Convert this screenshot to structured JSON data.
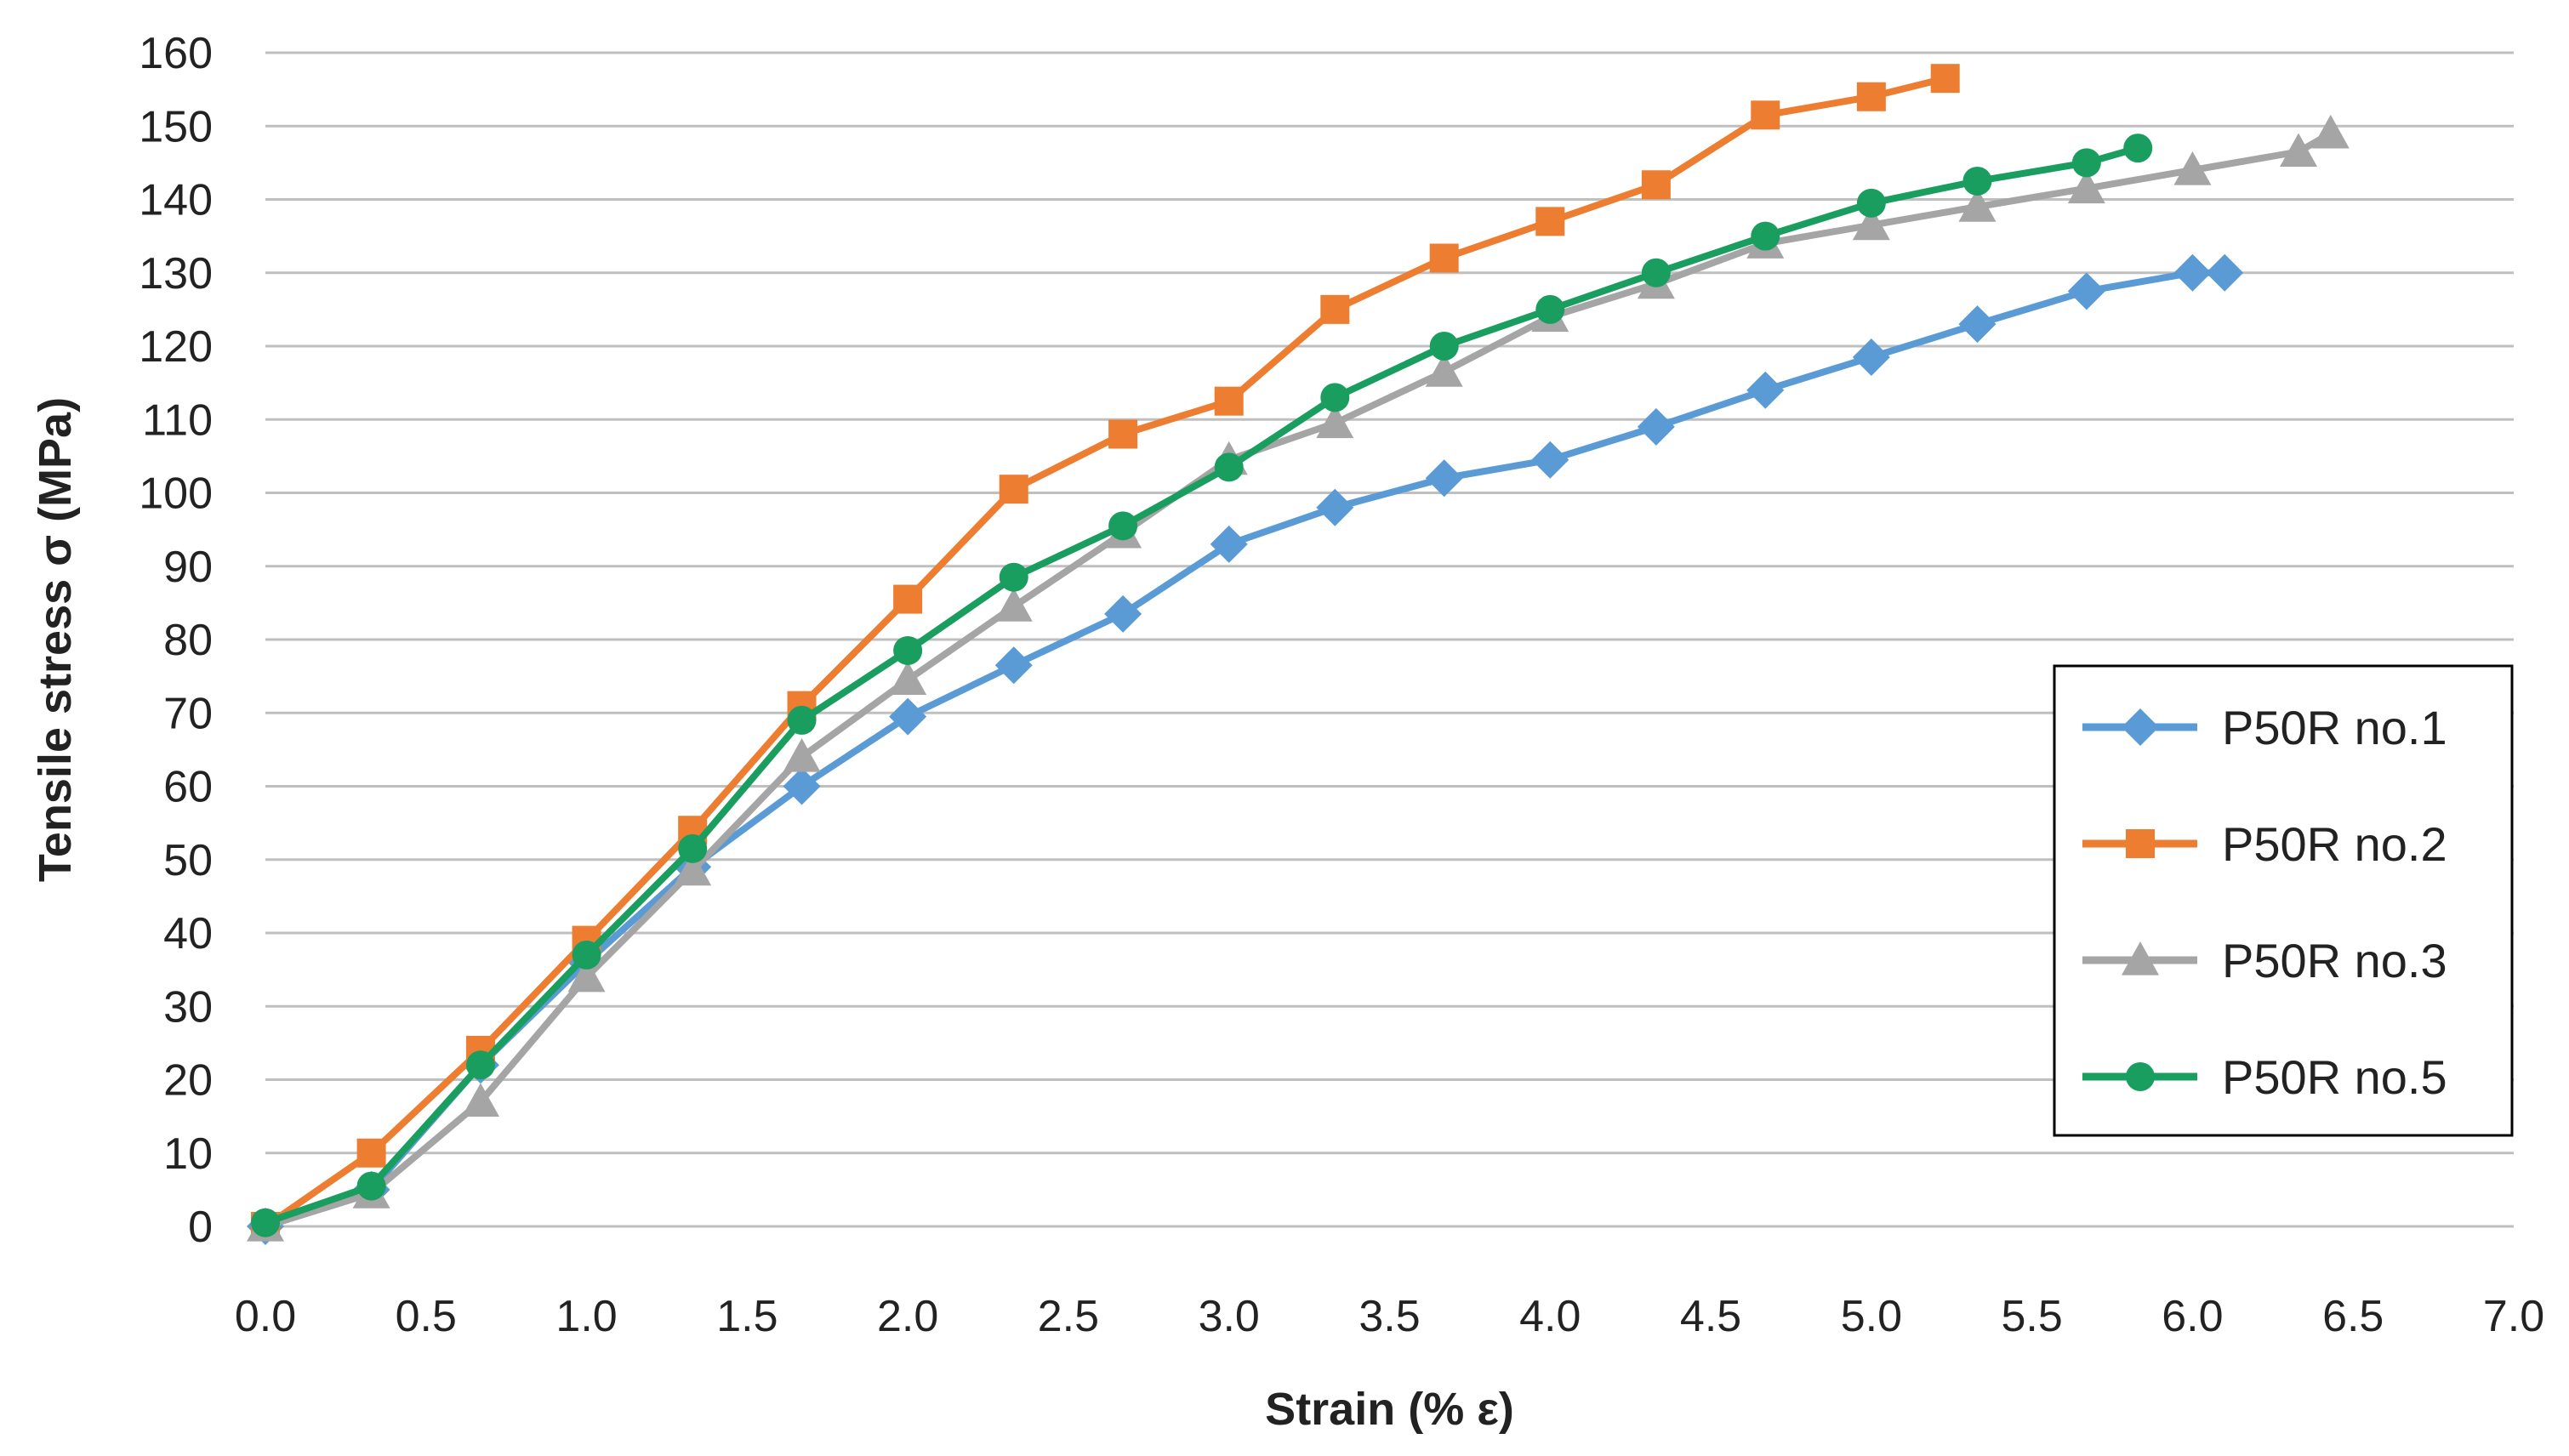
{
  "chart_data": {
    "type": "line",
    "title": "",
    "xlabel": "Strain (% ε)",
    "ylabel": "Tensile stress σ (MPa)",
    "xlim": [
      0,
      7
    ],
    "ylim": [
      0,
      160
    ],
    "x_ticks": [
      "0.0",
      "0.5",
      "1.0",
      "1.5",
      "2.0",
      "2.5",
      "3.0",
      "3.5",
      "4.0",
      "4.5",
      "5.0",
      "5.5",
      "6.0",
      "6.5",
      "7.0"
    ],
    "y_ticks": [
      "0",
      "10",
      "20",
      "30",
      "40",
      "50",
      "60",
      "70",
      "80",
      "90",
      "100",
      "110",
      "120",
      "130",
      "140",
      "150",
      "160"
    ],
    "grid": "horizontal",
    "legend_position": "right",
    "series": [
      {
        "name": "P50R no.1",
        "color": "#5B9BD5",
        "marker": "diamond",
        "points": [
          [
            0.0,
            0
          ],
          [
            0.33,
            5
          ],
          [
            0.67,
            22
          ],
          [
            1.0,
            36
          ],
          [
            1.33,
            49
          ],
          [
            1.67,
            60
          ],
          [
            2.0,
            69.5
          ],
          [
            2.33,
            76.5
          ],
          [
            2.67,
            83.5
          ],
          [
            3.0,
            93
          ],
          [
            3.33,
            98
          ],
          [
            3.67,
            102
          ],
          [
            4.0,
            104.5
          ],
          [
            4.33,
            109
          ],
          [
            4.67,
            114
          ],
          [
            5.0,
            118.5
          ],
          [
            5.33,
            123
          ],
          [
            5.67,
            127.5
          ],
          [
            6.0,
            130
          ],
          [
            6.1,
            130
          ]
        ]
      },
      {
        "name": "P50R no.2",
        "color": "#ED7D31",
        "marker": "square",
        "points": [
          [
            0.0,
            0
          ],
          [
            0.33,
            10
          ],
          [
            0.67,
            24
          ],
          [
            1.0,
            39
          ],
          [
            1.33,
            54
          ],
          [
            1.67,
            71
          ],
          [
            2.0,
            85.5
          ],
          [
            2.33,
            100.5
          ],
          [
            2.67,
            108
          ],
          [
            3.0,
            112.5
          ],
          [
            3.33,
            125
          ],
          [
            3.67,
            132
          ],
          [
            4.0,
            137
          ],
          [
            4.33,
            142
          ],
          [
            4.67,
            151.5
          ],
          [
            5.0,
            154
          ],
          [
            5.23,
            156.5
          ]
        ]
      },
      {
        "name": "P50R no.3",
        "color": "#A5A5A5",
        "marker": "triangle",
        "points": [
          [
            0.0,
            0
          ],
          [
            0.33,
            4.5
          ],
          [
            0.67,
            17
          ],
          [
            1.0,
            34
          ],
          [
            1.33,
            48.5
          ],
          [
            1.67,
            64
          ],
          [
            2.0,
            74.5
          ],
          [
            2.33,
            84.5
          ],
          [
            2.67,
            94.5
          ],
          [
            3.0,
            104.5
          ],
          [
            3.33,
            109.5
          ],
          [
            3.67,
            116.5
          ],
          [
            4.0,
            124
          ],
          [
            4.33,
            128.5
          ],
          [
            4.67,
            134
          ],
          [
            5.0,
            136.5
          ],
          [
            5.33,
            139
          ],
          [
            5.67,
            141.5
          ],
          [
            6.0,
            144
          ],
          [
            6.33,
            146.5
          ],
          [
            6.43,
            149
          ]
        ]
      },
      {
        "name": "P50R no.5",
        "color": "#1A9E5F",
        "marker": "circle",
        "points": [
          [
            0.0,
            0.5
          ],
          [
            0.33,
            5.5
          ],
          [
            0.67,
            22
          ],
          [
            1.0,
            37
          ],
          [
            1.33,
            51.5
          ],
          [
            1.67,
            69
          ],
          [
            2.0,
            78.5
          ],
          [
            2.33,
            88.5
          ],
          [
            2.67,
            95.5
          ],
          [
            3.0,
            103.5
          ],
          [
            3.33,
            113
          ],
          [
            3.67,
            120
          ],
          [
            4.0,
            125
          ],
          [
            4.33,
            130
          ],
          [
            4.67,
            135
          ],
          [
            5.0,
            139.5
          ],
          [
            5.33,
            142.5
          ],
          [
            5.67,
            145
          ],
          [
            5.83,
            147
          ]
        ]
      }
    ]
  }
}
